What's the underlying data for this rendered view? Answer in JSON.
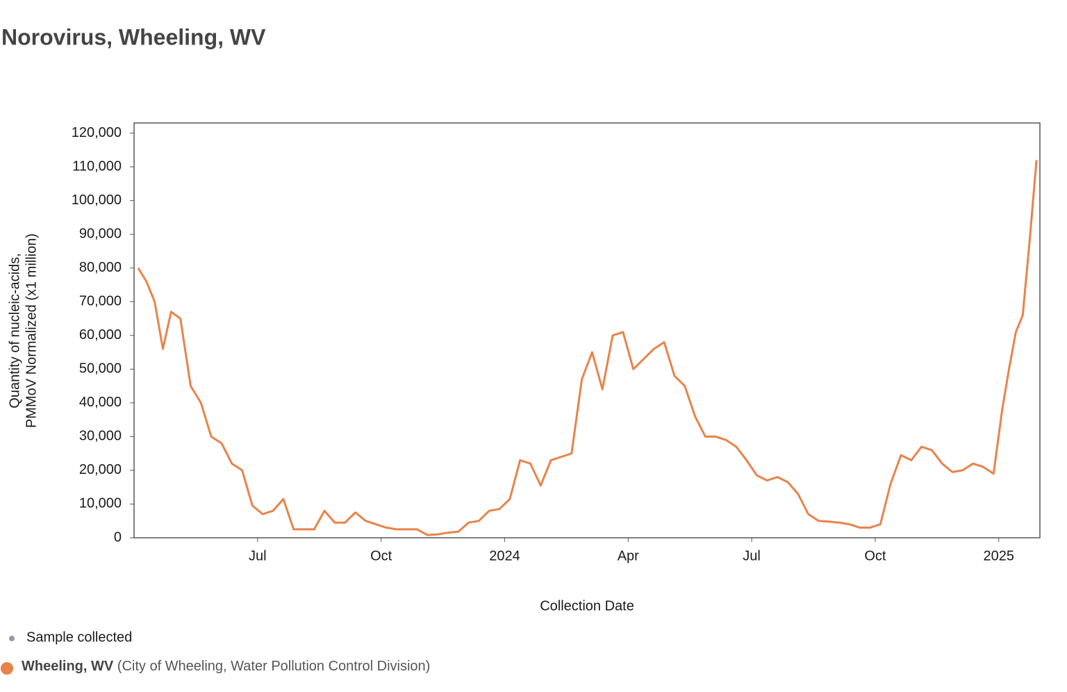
{
  "chart_data": {
    "type": "line",
    "title": "Norovirus, Wheeling, WV",
    "xlabel": "Collection Date",
    "ylabel": [
      "Quantity of nucleic-acids,",
      "PMMoV Normalized (x1 million)"
    ],
    "x": [
      "2023-04",
      "2023-04",
      "2023-04",
      "2023-04",
      "2023-04",
      "2023-05",
      "2023-05",
      "2023-05",
      "2023-05",
      "2023-06",
      "2023-06",
      "2023-06",
      "2023-06",
      "2023-07",
      "2023-07",
      "2023-07",
      "2023-07",
      "2023-08",
      "2023-08",
      "2023-08",
      "2023-08",
      "2023-09",
      "2023-09",
      "2023-09",
      "2023-09",
      "2023-10",
      "2023-10",
      "2023-10",
      "2023-10",
      "2023-11",
      "2023-11",
      "2023-11",
      "2023-11",
      "2023-12",
      "2023-12",
      "2023-12",
      "2023-12",
      "2024-01",
      "2024-01",
      "2024-01",
      "2024-01",
      "2024-02",
      "2024-02",
      "2024-02",
      "2024-02",
      "2024-03",
      "2024-03",
      "2024-03",
      "2024-03",
      "2024-04",
      "2024-04",
      "2024-04",
      "2024-04",
      "2024-05",
      "2024-05",
      "2024-05",
      "2024-05",
      "2024-06",
      "2024-06",
      "2024-06",
      "2024-06",
      "2024-07",
      "2024-07",
      "2024-07",
      "2024-07",
      "2024-08",
      "2024-08",
      "2024-08",
      "2024-08",
      "2024-09",
      "2024-09",
      "2024-09",
      "2024-09",
      "2024-10",
      "2024-10",
      "2024-10",
      "2024-10",
      "2024-11",
      "2024-11",
      "2024-11",
      "2024-11",
      "2024-12",
      "2024-12",
      "2024-12",
      "2024-12",
      "2025-01",
      "2025-01",
      "2025-01",
      "2025-01",
      "2025-01",
      "2025-01"
    ],
    "series": [
      {
        "name": "Wheeling, WV",
        "source": "(City of Wheeling, Water Pollution Control Division)",
        "color": "#e8834a",
        "values": [
          80000,
          76000,
          70000,
          56000,
          67000,
          65000,
          45000,
          40000,
          30000,
          28000,
          22000,
          20000,
          9500,
          7000,
          8000,
          11500,
          2500,
          2500,
          2500,
          8000,
          4500,
          4500,
          7500,
          5000,
          4000,
          3000,
          2500,
          2500,
          2500,
          800,
          1000,
          1500,
          1800,
          4500,
          5000,
          8000,
          8500,
          11500,
          23000,
          22000,
          15500,
          23000,
          24000,
          25000,
          47000,
          55000,
          44000,
          60000,
          61000,
          50000,
          53000,
          56000,
          58000,
          48000,
          45000,
          36000,
          30000,
          30000,
          29000,
          27000,
          23000,
          18500,
          17000,
          18000,
          16500,
          13000,
          7000,
          5000,
          4800,
          4500,
          4000,
          3000,
          3000,
          4000,
          16000,
          24500,
          23000,
          27000,
          26000,
          22000,
          19500,
          20000,
          22000,
          21000,
          19000,
          38000,
          50000,
          61000,
          66000,
          88000,
          112000
        ]
      }
    ],
    "legend_sample": "Sample collected",
    "xlim": [
      "2023-04",
      "2025-02"
    ],
    "xticks": [
      {
        "value": "2023-07",
        "label": "Jul"
      },
      {
        "value": "2023-10",
        "label": "Oct"
      },
      {
        "value": "2024-01",
        "label": "2024"
      },
      {
        "value": "2024-04",
        "label": "Apr"
      },
      {
        "value": "2024-07",
        "label": "Jul"
      },
      {
        "value": "2024-10",
        "label": "Oct"
      },
      {
        "value": "2025-01",
        "label": "2025"
      }
    ],
    "ylim": [
      0,
      123000
    ],
    "yticks": [
      0,
      {
        "value": 10000,
        "label": "10,000"
      },
      {
        "value": 20000,
        "label": "20,000"
      },
      {
        "value": 30000,
        "label": "30,000"
      },
      {
        "value": 40000,
        "label": "40,000"
      },
      {
        "value": 50000,
        "label": "50,000"
      },
      {
        "value": 60000,
        "label": "60,000"
      },
      {
        "value": 70000,
        "label": "70,000"
      },
      {
        "value": 80000,
        "label": "80,000"
      },
      {
        "value": 90000,
        "label": "90,000"
      },
      {
        "value": 100000,
        "label": "100,000"
      },
      {
        "value": 110000,
        "label": "110,000"
      },
      {
        "value": 120000,
        "label": "120,000"
      }
    ]
  }
}
